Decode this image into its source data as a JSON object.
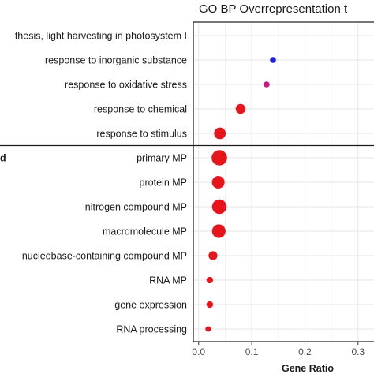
{
  "chart_data": {
    "type": "scatter",
    "title": "GO BP Overrepresentation t",
    "xlabel": "Gene Ratio",
    "ylabel": "",
    "xlim": [
      -0.01,
      0.33
    ],
    "x_ticks": [
      "0.0",
      "0.1",
      "0.2",
      "0.3"
    ],
    "x_tick_values": [
      0.0,
      0.1,
      0.2,
      0.3
    ],
    "grid": true,
    "groups": [
      {
        "label": "",
        "categories": [
          {
            "name": "thesis, light harvesting in photosystem I",
            "x": null,
            "size": null,
            "color": ""
          },
          {
            "name": "response to inorganic substance",
            "x": 0.14,
            "size": 1,
            "color": "#1f1fdc"
          },
          {
            "name": "response to oxidative stress",
            "x": 0.128,
            "size": 1,
            "color": "#c2187f"
          },
          {
            "name": "response to chemical",
            "x": 0.079,
            "size": 3,
            "color": "#e8141c"
          },
          {
            "name": "response to stimulus",
            "x": 0.04,
            "size": 4,
            "color": "#e8141c"
          }
        ]
      },
      {
        "label": "d",
        "categories": [
          {
            "name": "primary MP",
            "x": 0.039,
            "size": 6,
            "color": "#e8141c"
          },
          {
            "name": "protein MP",
            "x": 0.037,
            "size": 4.5,
            "color": "#e8141c"
          },
          {
            "name": "nitrogen compound MP",
            "x": 0.039,
            "size": 5.5,
            "color": "#e8141c"
          },
          {
            "name": "macromolecule MP",
            "x": 0.038,
            "size": 5,
            "color": "#e8141c"
          },
          {
            "name": "nucleobase-containing compound MP",
            "x": 0.027,
            "size": 2.5,
            "color": "#e8141c"
          },
          {
            "name": "RNA MP",
            "x": 0.021,
            "size": 1.3,
            "color": "#e8141c"
          },
          {
            "name": "gene expression",
            "x": 0.021,
            "size": 1.3,
            "color": "#e8141c"
          },
          {
            "name": "RNA processing",
            "x": 0.018,
            "size": 0.8,
            "color": "#e8141c"
          }
        ]
      }
    ]
  }
}
